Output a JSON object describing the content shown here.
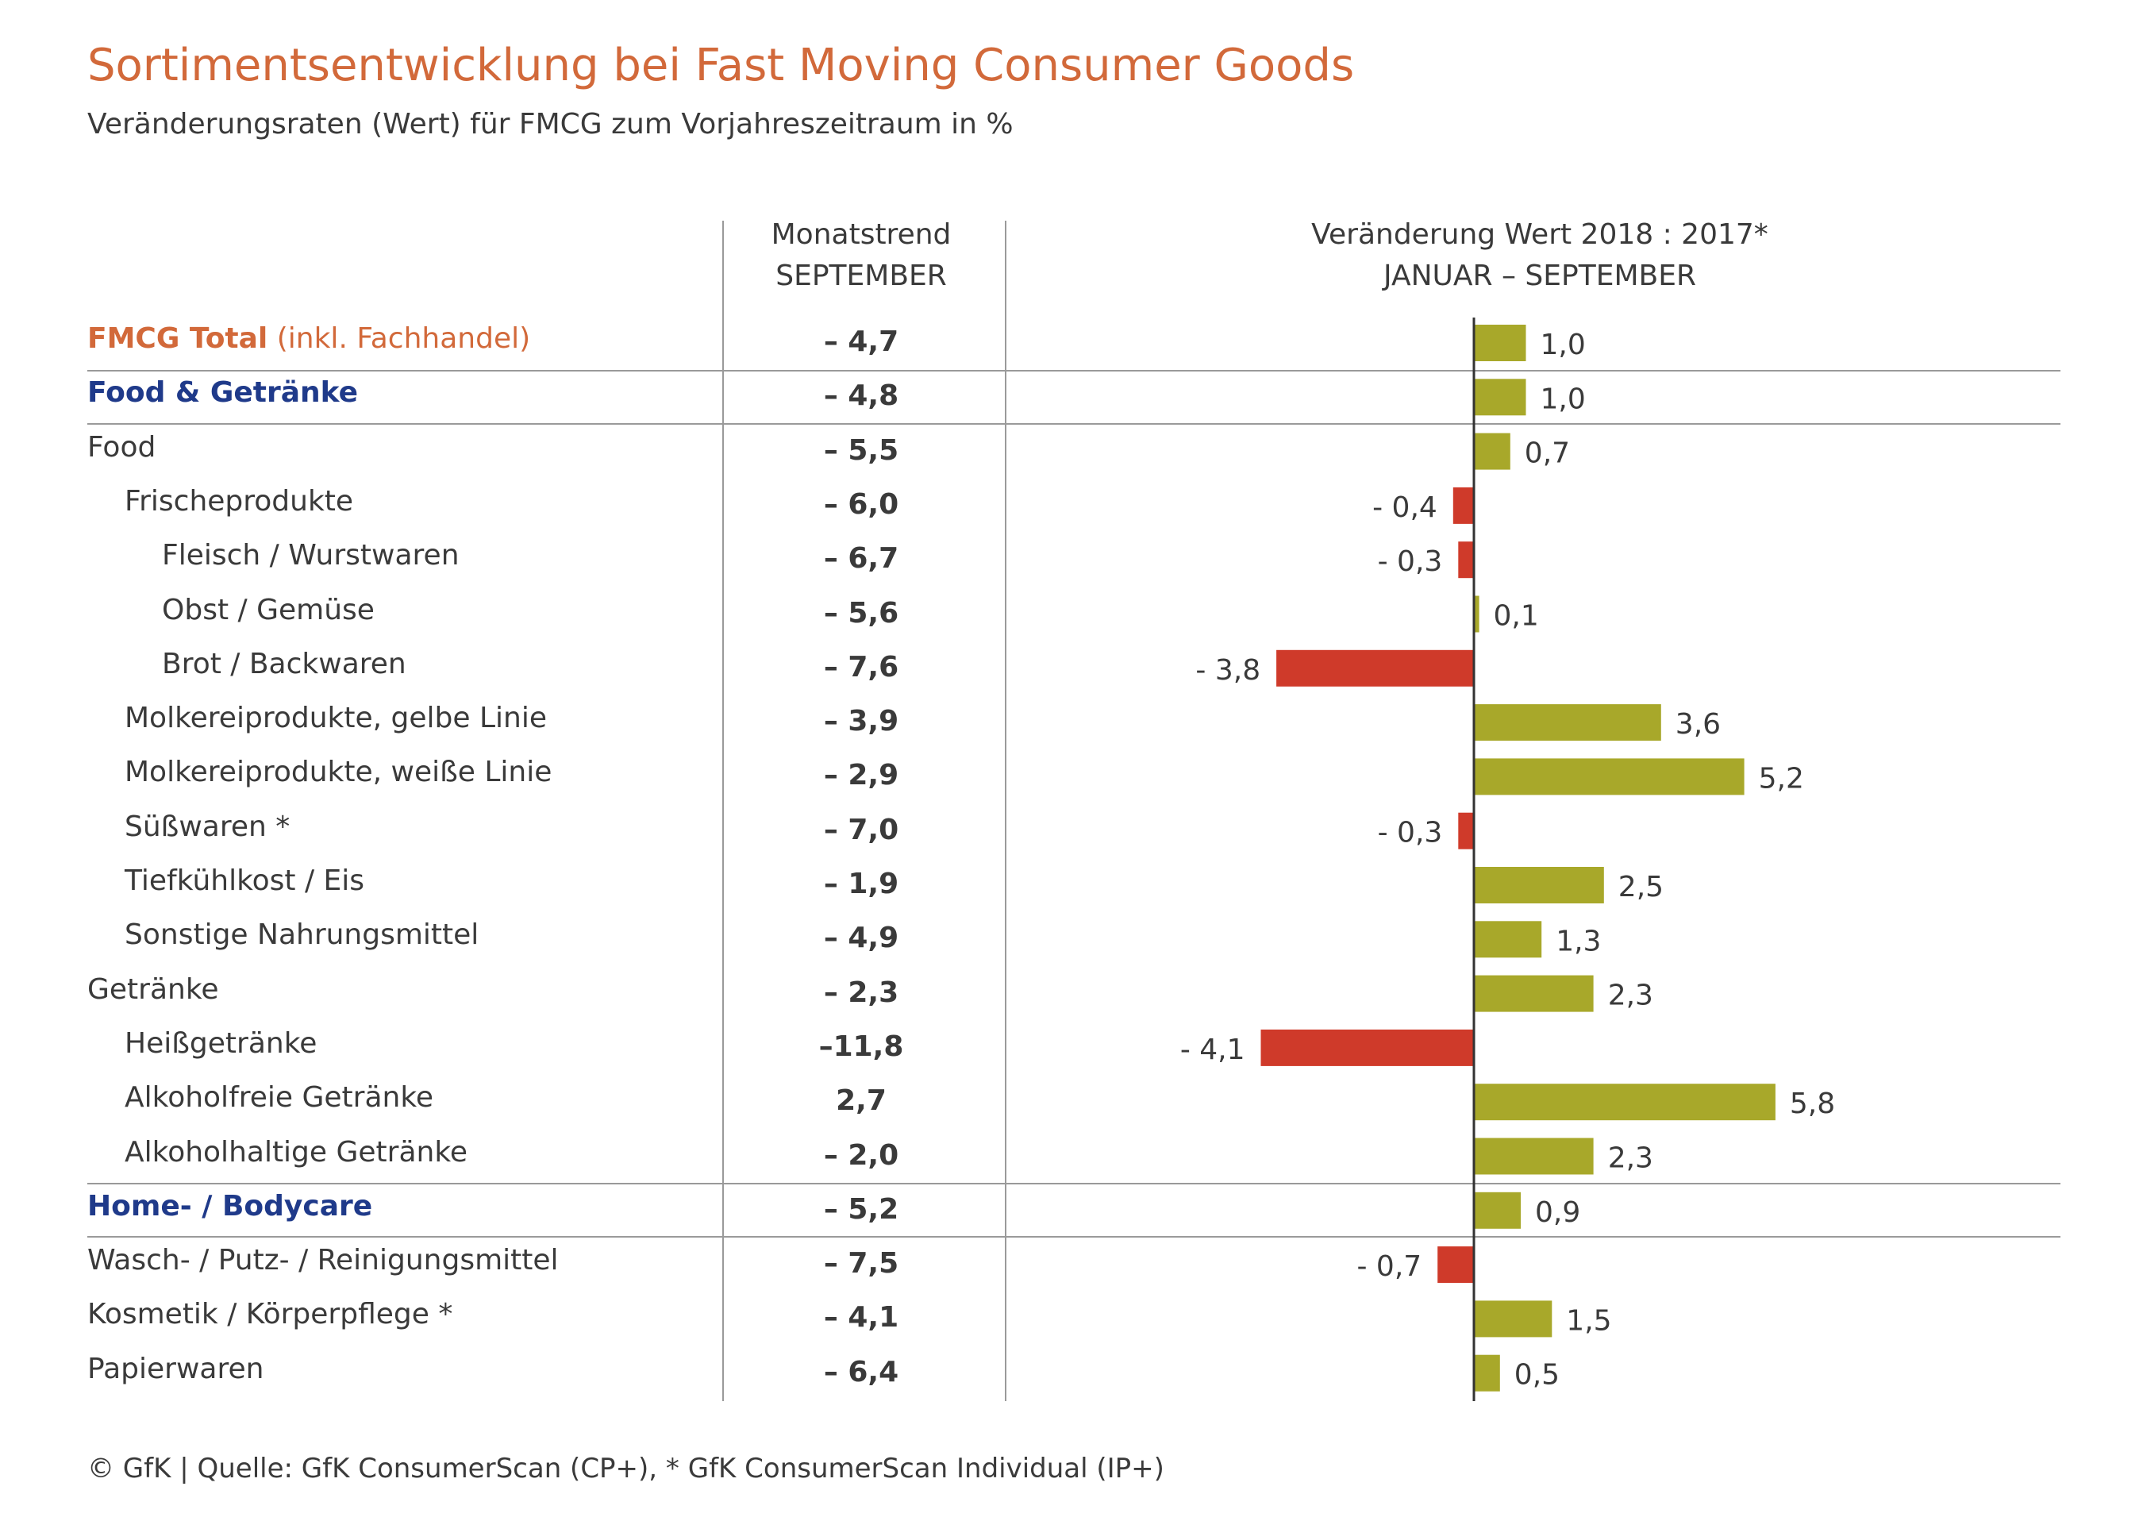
{
  "title": "Sortimentsentwicklung bei Fast Moving Consumer Goods",
  "subtitle": "Veränderungsraten (Wert) für FMCG zum Vorjahreszeitraum in %",
  "headers": {
    "monatstrend_line1": "Monatstrend",
    "monatstrend_line2": "SEPTEMBER",
    "change_line1": "Veränderung Wert 2018 : 2017*",
    "change_line2": "JANUAR – SEPTEMBER"
  },
  "total_label": {
    "bold": "FMCG Total",
    "rest": " (inkl. Fachhandel)"
  },
  "rows": [
    {
      "label": "FMCG Total (inkl. Fachhandel)",
      "style": "total",
      "indent": 0,
      "monthly": "– 4,7",
      "value": 1.0,
      "value_label": "1,0"
    },
    {
      "label": "Food & Getränke",
      "style": "group",
      "indent": 0,
      "monthly": "– 4,8",
      "value": 1.0,
      "value_label": "1,0"
    },
    {
      "label": "Food",
      "style": "normal",
      "indent": 0,
      "monthly": "– 5,5",
      "value": 0.7,
      "value_label": "0,7"
    },
    {
      "label": "Frischeprodukte",
      "style": "normal",
      "indent": 1,
      "monthly": "– 6,0",
      "value": -0.4,
      "value_label": "- 0,4"
    },
    {
      "label": "Fleisch / Wurstwaren",
      "style": "normal",
      "indent": 2,
      "monthly": "– 6,7",
      "value": -0.3,
      "value_label": "- 0,3"
    },
    {
      "label": "Obst / Gemüse",
      "style": "normal",
      "indent": 2,
      "monthly": "– 5,6",
      "value": 0.1,
      "value_label": "0,1"
    },
    {
      "label": "Brot / Backwaren",
      "style": "normal",
      "indent": 2,
      "monthly": "– 7,6",
      "value": -3.8,
      "value_label": "- 3,8"
    },
    {
      "label": "Molkereiprodukte, gelbe Linie",
      "style": "normal",
      "indent": 1,
      "monthly": "– 3,9",
      "value": 3.6,
      "value_label": "3,6"
    },
    {
      "label": "Molkereiprodukte, weiße Linie",
      "style": "normal",
      "indent": 1,
      "monthly": "– 2,9",
      "value": 5.2,
      "value_label": "5,2"
    },
    {
      "label": "Süßwaren *",
      "style": "normal",
      "indent": 1,
      "monthly": "– 7,0",
      "value": -0.3,
      "value_label": "- 0,3"
    },
    {
      "label": "Tiefkühlkost / Eis",
      "style": "normal",
      "indent": 1,
      "monthly": "– 1,9",
      "value": 2.5,
      "value_label": "2,5"
    },
    {
      "label": "Sonstige Nahrungsmittel",
      "style": "normal",
      "indent": 1,
      "monthly": "– 4,9",
      "value": 1.3,
      "value_label": "1,3"
    },
    {
      "label": "Getränke",
      "style": "normal",
      "indent": 0,
      "monthly": "– 2,3",
      "value": 2.3,
      "value_label": "2,3"
    },
    {
      "label": "Heißgetränke",
      "style": "normal",
      "indent": 1,
      "monthly": "–11,8",
      "value": -4.1,
      "value_label": "- 4,1"
    },
    {
      "label": "Alkoholfreie Getränke",
      "style": "normal",
      "indent": 1,
      "monthly": "2,7",
      "value": 5.8,
      "value_label": "5,8"
    },
    {
      "label": "Alkoholhaltige Getränke",
      "style": "normal",
      "indent": 1,
      "monthly": "– 2,0",
      "value": 2.3,
      "value_label": "2,3"
    },
    {
      "label": "Home- / Bodycare",
      "style": "group",
      "indent": 0,
      "monthly": "– 5,2",
      "value": 0.9,
      "value_label": "0,9"
    },
    {
      "label": "Wasch- / Putz- / Reinigungsmittel",
      "style": "normal",
      "indent": 0,
      "monthly": "– 7,5",
      "value": -0.7,
      "value_label": "- 0,7"
    },
    {
      "label": "Kosmetik / Körperpflege *",
      "style": "normal",
      "indent": 0,
      "monthly": "– 4,1",
      "value": 1.5,
      "value_label": "1,5"
    },
    {
      "label": "Papierwaren",
      "style": "normal",
      "indent": 0,
      "monthly": "– 6,4",
      "value": 0.5,
      "value_label": "0,5"
    }
  ],
  "colors": {
    "positive": "#a8a82a",
    "negative": "#cf3a2a",
    "title": "#d2693a",
    "group": "#1f3a8a",
    "rules": "#9a9a9a"
  },
  "chart_data": {
    "type": "bar",
    "orientation": "horizontal",
    "title": "Sortimentsentwicklung bei Fast Moving Consumer Goods",
    "subtitle": "Veränderungsraten (Wert) für FMCG zum Vorjahreszeitraum in %",
    "categories": [
      "FMCG Total (inkl. Fachhandel)",
      "Food & Getränke",
      "Food",
      "Frischeprodukte",
      "Fleisch / Wurstwaren",
      "Obst / Gemüse",
      "Brot / Backwaren",
      "Molkereiprodukte, gelbe Linie",
      "Molkereiprodukte, weiße Linie",
      "Süßwaren *",
      "Tiefkühlkost / Eis",
      "Sonstige Nahrungsmittel",
      "Getränke",
      "Heißgetränke",
      "Alkoholfreie Getränke",
      "Alkoholhaltige Getränke",
      "Home- / Bodycare",
      "Wasch- / Putz- / Reinigungsmittel",
      "Kosmetik / Körperpflege *",
      "Papierwaren"
    ],
    "values": [
      1.0,
      1.0,
      0.7,
      -0.4,
      -0.3,
      0.1,
      -3.8,
      3.6,
      5.2,
      -0.3,
      2.5,
      1.3,
      2.3,
      -4.1,
      5.8,
      2.3,
      0.9,
      -0.7,
      1.5,
      0.5
    ],
    "table_column": {
      "name": "Monatstrend SEPTEMBER",
      "values": [
        -4.7,
        -4.8,
        -5.5,
        -6.0,
        -6.7,
        -5.6,
        -7.6,
        -3.9,
        -2.9,
        -7.0,
        -1.9,
        -4.9,
        -2.3,
        -11.8,
        2.7,
        -2.0,
        -5.2,
        -7.5,
        -4.1,
        -6.4
      ]
    },
    "xlim": [
      -4.1,
      5.8
    ],
    "grid": false
  },
  "footer": "© GfK | Quelle: GfK ConsumerScan (CP+), * GfK ConsumerScan Individual (IP+)"
}
